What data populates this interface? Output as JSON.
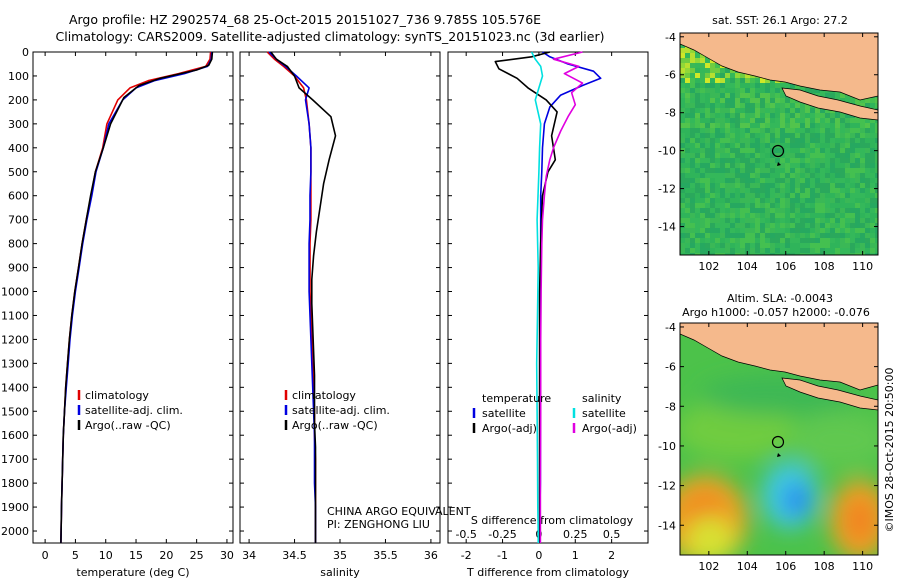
{
  "header": {
    "line1": "Argo profile: HZ 2902574_68 25-Oct-2015 20151027_736 9.785S 105.576E",
    "line2": "Climatology: CARS2009. Satellite-adjusted climatology: synTS_20151023.nc (3d earlier)"
  },
  "colors": {
    "climatology": "#e00000",
    "satellite": "#0000e0",
    "argo": "#000000",
    "cyan": "#00e0e0",
    "magenta": "#e000e0",
    "land": "#f5b98c"
  },
  "chart_data": [
    {
      "id": "temperature",
      "type": "line",
      "xlabel": "temperature (deg C)",
      "xticks": [
        0,
        5,
        10,
        15,
        20,
        25,
        30
      ],
      "xlim": [
        -2,
        31
      ],
      "ylim": [
        2050,
        0
      ],
      "yticks": [
        0,
        100,
        200,
        300,
        400,
        500,
        600,
        700,
        800,
        900,
        1000,
        1100,
        1200,
        1300,
        1400,
        1500,
        1600,
        1700,
        1800,
        1900,
        2000
      ],
      "legend": [
        "climatology",
        "satellite-adj. clim.",
        "Argo(..raw -QC)"
      ],
      "series": [
        {
          "name": "climatology",
          "color": "#e00000",
          "x": [
            27.3,
            27.2,
            26.5,
            22,
            17,
            14,
            12,
            10.2,
            9.5,
            8.3,
            7.6,
            6.8,
            6.1,
            5.5,
            4.9,
            4.4,
            4.0,
            3.7,
            3.4,
            3.2,
            3.0,
            2.9,
            2.8,
            2.7,
            2.6
          ],
          "y": [
            0,
            30,
            60,
            90,
            120,
            150,
            200,
            300,
            400,
            500,
            600,
            700,
            800,
            900,
            1000,
            1100,
            1200,
            1300,
            1400,
            1500,
            1600,
            1700,
            1800,
            1900,
            2050
          ]
        },
        {
          "name": "satellite-adj. clim.",
          "color": "#0000e0",
          "x": [
            27.5,
            27.4,
            26.8,
            23,
            18,
            15,
            12.8,
            10.5,
            9.6,
            8.4,
            7.7,
            6.9,
            6.2,
            5.6,
            5.0,
            4.5,
            4.1,
            3.8,
            3.5,
            3.2,
            3.0,
            2.9,
            2.8,
            2.7,
            2.6
          ],
          "y": [
            0,
            30,
            60,
            90,
            120,
            150,
            200,
            300,
            400,
            500,
            600,
            700,
            800,
            900,
            1000,
            1100,
            1200,
            1300,
            1400,
            1500,
            1600,
            1700,
            1800,
            1900,
            2050
          ]
        },
        {
          "name": "Argo(..raw -QC)",
          "color": "#000000",
          "x": [
            27.6,
            27.5,
            27,
            25,
            19,
            15.5,
            13,
            10.8,
            9.6,
            8.3,
            7.5,
            6.8,
            6.1,
            5.5,
            4.9,
            4.4,
            4.0,
            3.7,
            3.4,
            3.2,
            3.0,
            2.9,
            2.8,
            2.7,
            2.6
          ],
          "y": [
            0,
            30,
            55,
            75,
            110,
            140,
            190,
            300,
            400,
            500,
            600,
            700,
            800,
            900,
            1000,
            1100,
            1200,
            1300,
            1400,
            1500,
            1600,
            1700,
            1800,
            1900,
            2050
          ]
        }
      ]
    },
    {
      "id": "salinity",
      "type": "line",
      "xlabel": "salinity",
      "xticks": [
        34,
        34.5,
        35,
        35.5,
        36
      ],
      "xlim": [
        33.9,
        36.1
      ],
      "ylim": [
        2050,
        0
      ],
      "legend": [
        "climatology",
        "satellite-adj. clim.",
        "Argo(..raw -QC)"
      ],
      "annotation": [
        "CHINA ARGO EQUIVALENT",
        "PI: ZENGHONG LIU"
      ],
      "series": [
        {
          "name": "climatology",
          "color": "#e00000",
          "x": [
            34.2,
            34.28,
            34.38,
            34.5,
            34.6,
            34.63,
            34.66,
            34.68,
            34.68,
            34.68,
            34.68,
            34.67,
            34.67,
            34.67,
            34.68,
            34.69,
            34.7,
            34.71,
            34.72,
            34.72,
            34.73,
            34.73,
            34.73,
            34.73
          ],
          "y": [
            0,
            30,
            60,
            100,
            150,
            200,
            300,
            400,
            500,
            600,
            700,
            800,
            900,
            1000,
            1100,
            1200,
            1300,
            1400,
            1500,
            1600,
            1700,
            1800,
            1900,
            2050
          ]
        },
        {
          "name": "satellite-adj. clim.",
          "color": "#0000e0",
          "x": [
            34.22,
            34.3,
            34.4,
            34.52,
            34.66,
            34.62,
            34.66,
            34.68,
            34.68,
            34.67,
            34.67,
            34.66,
            34.66,
            34.66,
            34.67,
            34.68,
            34.69,
            34.7,
            34.71,
            34.72,
            34.72,
            34.72,
            34.73,
            34.73
          ],
          "y": [
            0,
            30,
            60,
            100,
            150,
            200,
            300,
            400,
            500,
            600,
            700,
            800,
            900,
            1000,
            1100,
            1200,
            1300,
            1400,
            1500,
            1600,
            1700,
            1800,
            1900,
            2050
          ]
        },
        {
          "name": "Argo(..raw -QC)",
          "color": "#000000",
          "x": [
            34.24,
            34.3,
            34.42,
            34.5,
            34.55,
            34.7,
            34.9,
            34.95,
            34.88,
            34.82,
            34.78,
            34.74,
            34.71,
            34.69,
            34.69,
            34.7,
            34.71,
            34.72,
            34.72,
            34.72,
            34.73,
            34.73,
            34.73,
            34.73
          ],
          "y": [
            0,
            30,
            60,
            100,
            150,
            200,
            270,
            350,
            450,
            550,
            650,
            750,
            850,
            950,
            1050,
            1150,
            1250,
            1350,
            1450,
            1550,
            1650,
            1750,
            1900,
            2050
          ]
        }
      ]
    },
    {
      "id": "difference",
      "type": "line",
      "xlabel": "T difference from climatology",
      "xticks": [
        -2,
        -1,
        0,
        1,
        2
      ],
      "xlim": [
        -2.5,
        3
      ],
      "top_label": "S difference from climatology",
      "top_ticks": [
        "-0.5",
        "-0.25",
        "0",
        "0.25",
        "0.5"
      ],
      "top_tick_positions": [
        -2,
        -1,
        0,
        1,
        2
      ],
      "ylim": [
        2050,
        0
      ],
      "legend_left_title": "temperature",
      "legend_left": [
        "satellite",
        "Argo(-adj)"
      ],
      "legend_right_title": "salinity",
      "legend_right": [
        "satellite",
        "Argo(-adj)"
      ],
      "series": [
        {
          "name": "temperature satellite",
          "color": "#0000e0",
          "x": [
            0.1,
            0.3,
            0.8,
            1.5,
            1.7,
            1.2,
            0.6,
            0.3,
            0.15,
            0.1,
            0.08,
            0.05,
            0.05,
            0.05,
            0.04,
            0.04,
            0.04,
            0.04,
            0.03,
            0.03,
            0.03
          ],
          "y": [
            0,
            20,
            50,
            80,
            110,
            140,
            180,
            230,
            300,
            400,
            500,
            600,
            800,
            1000,
            1200,
            1400,
            1600,
            1800,
            1900,
            2000,
            2050
          ]
        },
        {
          "name": "temperature Argo(-adj)",
          "color": "#000000",
          "x": [
            0.3,
            -0.2,
            -1.2,
            -1.1,
            -0.6,
            -0.3,
            0.2,
            0.5,
            0.35,
            0.45,
            0.25,
            0.1,
            0.05,
            0.02,
            0.02,
            0.02,
            0.02,
            0.02,
            0.02,
            0.02
          ],
          "y": [
            0,
            20,
            40,
            70,
            110,
            150,
            200,
            250,
            350,
            450,
            500,
            600,
            800,
            1000,
            1200,
            1400,
            1600,
            1800,
            1900,
            2050
          ]
        },
        {
          "name": "salinity satellite",
          "color": "#00e0e0",
          "x": [
            -0.2,
            -0.1,
            0.05,
            0.1,
            0.0,
            -0.1,
            0.05,
            0.02,
            0.0,
            -0.05,
            -0.02,
            -0.04,
            -0.06,
            -0.05,
            -0.04,
            -0.03,
            -0.02,
            -0.02
          ],
          "y": [
            0,
            30,
            60,
            100,
            150,
            200,
            300,
            400,
            500,
            700,
            900,
            1100,
            1300,
            1500,
            1700,
            1900,
            2000,
            2050
          ]
        },
        {
          "name": "salinity Argo(-adj)",
          "color": "#e000e0",
          "x": [
            1.2,
            0.4,
            1.1,
            0.7,
            1.2,
            0.9,
            1.0,
            0.8,
            0.6,
            0.4,
            0.3,
            0.2,
            0.15,
            0.1,
            0.08,
            0.06,
            0.05,
            0.05,
            0.04,
            0.04
          ],
          "y": [
            0,
            30,
            60,
            90,
            130,
            170,
            220,
            270,
            330,
            400,
            450,
            520,
            600,
            700,
            800,
            1000,
            1200,
            1500,
            1800,
            2050
          ]
        }
      ]
    },
    {
      "id": "map_sst",
      "type": "heatmap",
      "title": "sat. SST: 26.1  Argo: 27.2",
      "xticks": [
        102,
        104,
        106,
        108,
        110
      ],
      "yticks": [
        -4,
        -6,
        -8,
        -10,
        -12,
        -14
      ],
      "xlim": [
        100.5,
        110.8
      ],
      "ylim": [
        -15.5,
        -3.8
      ],
      "argo_position": {
        "lon": 105.576,
        "lat": -9.785
      }
    },
    {
      "id": "map_sla",
      "type": "heatmap",
      "title_lines": [
        "Altim. SLA: -0.0043",
        "Argo h1000: -0.057 h2000: -0.076"
      ],
      "xticks": [
        102,
        104,
        106,
        108,
        110
      ],
      "yticks": [
        -4,
        -6,
        -8,
        -10,
        -12,
        -14
      ],
      "xlim": [
        100.5,
        110.8
      ],
      "ylim": [
        -15.5,
        -3.8
      ],
      "argo_position": {
        "lon": 105.576,
        "lat": -9.785
      }
    }
  ],
  "side_label": "©IMOS 28-Oct-2015 20:50:00"
}
